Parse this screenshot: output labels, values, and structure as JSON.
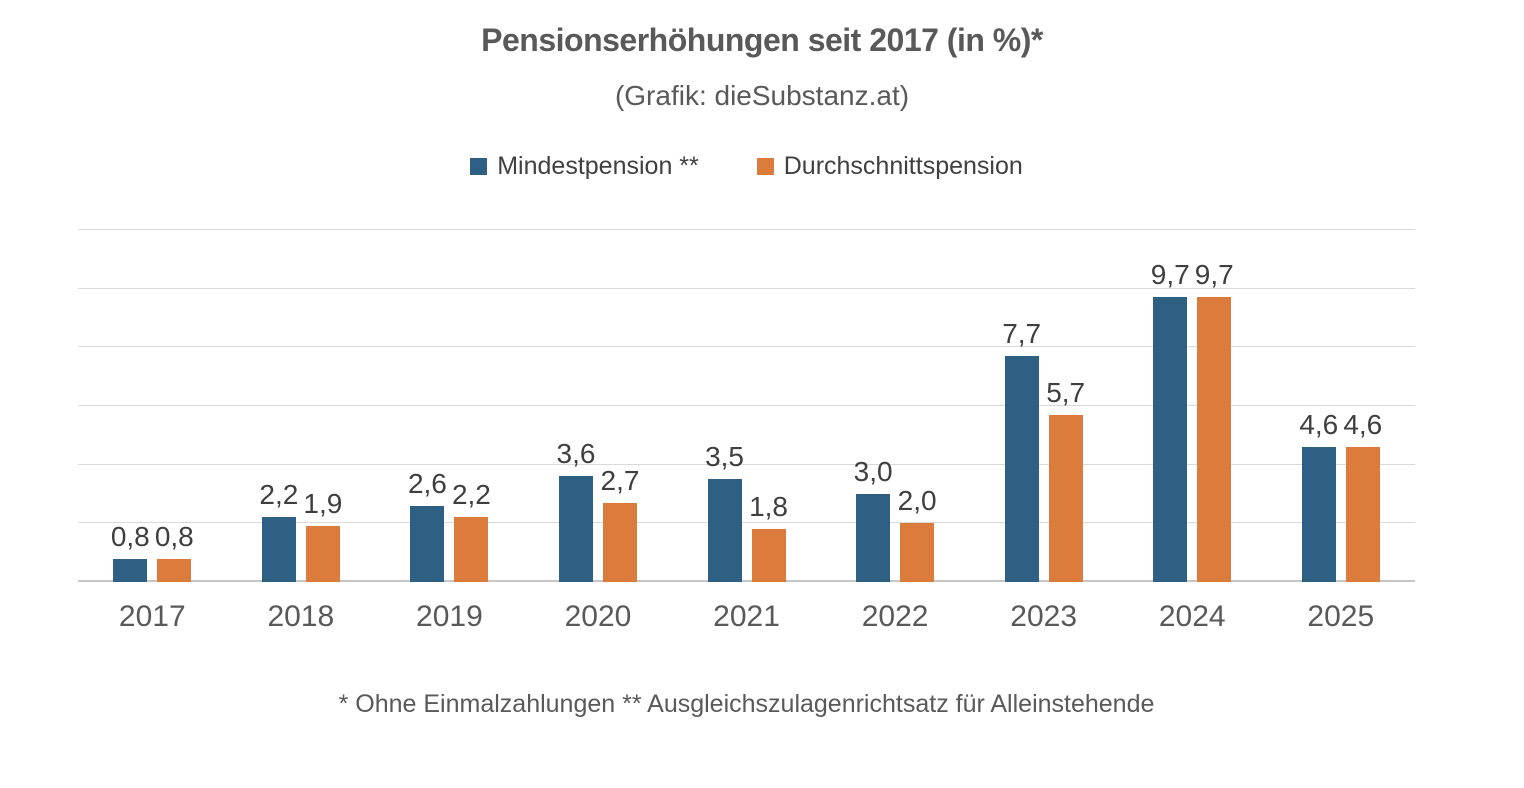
{
  "title": "Pensionserhöhungen seit 2017 (in %)*",
  "subtitle": "(Grafik: dieSubstanz.at)",
  "footnote": "* Ohne Einmalzahlungen ** Ausgleichszulagenrichtsatz für Alleinstehende",
  "colors": {
    "series1": "#2E6083",
    "series2": "#DB7B3C",
    "title_text": "#595959",
    "label_text": "#3F3F3F",
    "gridline": "#D9D9D9",
    "axis_line": "#C6C6C6",
    "background": "#FFFFFF"
  },
  "chart_data": {
    "type": "bar",
    "title": "Pensionserhöhungen seit 2017 (in %)*",
    "subtitle": "(Grafik: dieSubstanz.at)",
    "categories": [
      "2017",
      "2018",
      "2019",
      "2020",
      "2021",
      "2022",
      "2023",
      "2024",
      "2025"
    ],
    "series": [
      {
        "name": "Mindestpension **",
        "color": "#2E6083",
        "values": [
          0.8,
          2.2,
          2.6,
          3.6,
          3.5,
          3.0,
          7.7,
          9.7,
          4.6
        ]
      },
      {
        "name": "Durchschnittspension",
        "color": "#DB7B3C",
        "values": [
          0.8,
          1.9,
          2.2,
          2.7,
          1.8,
          2.0,
          5.7,
          9.7,
          4.6
        ]
      }
    ],
    "data_labels": [
      [
        "0,8",
        "2,2",
        "2,6",
        "3,6",
        "3,5",
        "3,0",
        "7,7",
        "9,7",
        "4,6"
      ],
      [
        "0,8",
        "1,9",
        "2,2",
        "2,7",
        "1,8",
        "2,0",
        "5,7",
        "9,7",
        "4,6"
      ]
    ],
    "xlabel": "",
    "ylabel": "",
    "ylim": [
      0,
      12
    ],
    "grid_step": 2,
    "grid": true,
    "y_axis_labels_visible": false,
    "legend_position": "top",
    "decimal_separator": ","
  }
}
